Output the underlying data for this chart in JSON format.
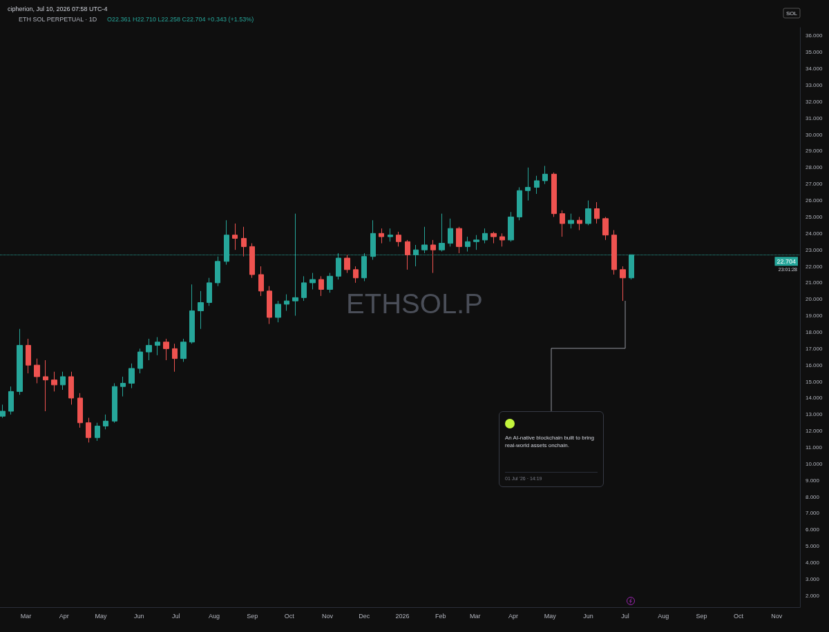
{
  "chart_data": {
    "type": "candlestick",
    "title": "ETH SOL PERPETUAL · 1D",
    "subtitle": "O22.361 H22.710 L22.258 C22.704 +0.343 (+1.53%)",
    "ylabel": "SOL",
    "annotations": [
      "cipherion, Jul 10, 2026 07:58 UTC-4",
      "ETHSOL.P",
      "An AI-native blockchain built to bring real-world assets onchain.",
      "01 Jul '26 · 14:19",
      "23:01:28"
    ],
    "x": [
      "2025-02-10",
      "2025-02-17",
      "2025-02-24",
      "2025-03-03",
      "2025-03-10",
      "2025-03-17",
      "2025-03-24",
      "2025-03-31",
      "2025-04-07",
      "2025-04-14",
      "2025-04-21",
      "2025-04-28",
      "2025-05-05",
      "2025-05-12",
      "2025-05-19",
      "2025-05-26",
      "2025-06-02",
      "2025-06-09",
      "2025-06-16",
      "2025-06-23",
      "2025-06-30",
      "2025-07-07",
      "2025-07-14",
      "2025-07-21",
      "2025-07-28",
      "2025-08-04",
      "2025-08-11",
      "2025-08-18",
      "2025-08-25",
      "2025-09-01",
      "2025-09-08",
      "2025-09-15",
      "2025-09-22",
      "2025-09-29",
      "2025-10-06",
      "2025-10-13",
      "2025-10-20",
      "2025-10-27",
      "2025-11-03",
      "2025-11-10",
      "2025-11-17",
      "2025-11-24",
      "2025-12-01",
      "2025-12-08",
      "2025-12-15",
      "2025-12-22",
      "2025-12-29",
      "2026-01-05",
      "2026-01-12",
      "2026-01-19",
      "2026-01-26",
      "2026-02-02",
      "2026-02-09",
      "2026-02-16",
      "2026-02-23",
      "2026-03-02",
      "2026-03-09",
      "2026-03-16",
      "2026-03-23",
      "2026-03-30",
      "2026-04-06",
      "2026-04-13",
      "2026-04-20",
      "2026-04-27",
      "2026-05-04",
      "2026-05-11",
      "2026-05-18",
      "2026-05-25",
      "2026-06-01",
      "2026-06-08",
      "2026-06-15",
      "2026-06-22",
      "2026-06-29",
      "2026-07-06"
    ],
    "ohlc": [
      [
        12.9,
        13.6,
        12.8,
        13.2
      ],
      [
        13.2,
        14.7,
        13.0,
        14.4
      ],
      [
        14.4,
        18.2,
        14.2,
        17.2
      ],
      [
        17.2,
        17.6,
        15.5,
        16.0
      ],
      [
        16.0,
        16.4,
        14.9,
        15.3
      ],
      [
        15.3,
        16.3,
        13.2,
        15.1
      ],
      [
        15.1,
        15.6,
        14.4,
        14.8
      ],
      [
        14.8,
        15.6,
        14.5,
        15.3
      ],
      [
        15.3,
        15.6,
        13.6,
        14.0
      ],
      [
        14.0,
        14.3,
        12.2,
        12.5
      ],
      [
        12.5,
        12.8,
        11.3,
        11.6
      ],
      [
        11.6,
        12.5,
        11.4,
        12.3
      ],
      [
        12.3,
        13.0,
        12.1,
        12.6
      ],
      [
        12.6,
        14.9,
        12.5,
        14.7
      ],
      [
        14.7,
        15.3,
        14.1,
        14.9
      ],
      [
        14.9,
        16.1,
        14.6,
        15.8
      ],
      [
        15.8,
        17.0,
        15.5,
        16.8
      ],
      [
        16.8,
        17.6,
        16.3,
        17.2
      ],
      [
        17.2,
        17.7,
        16.6,
        17.4
      ],
      [
        17.4,
        17.6,
        16.3,
        17.0
      ],
      [
        17.0,
        17.3,
        15.6,
        16.4
      ],
      [
        16.4,
        17.6,
        16.2,
        17.4
      ],
      [
        17.4,
        20.9,
        17.3,
        19.3
      ],
      [
        19.3,
        20.5,
        18.2,
        19.8
      ],
      [
        19.8,
        21.3,
        19.6,
        21.0
      ],
      [
        21.0,
        22.6,
        20.8,
        22.3
      ],
      [
        22.3,
        24.8,
        22.1,
        23.9
      ],
      [
        23.9,
        24.6,
        23.0,
        23.7
      ],
      [
        23.7,
        24.4,
        22.6,
        23.2
      ],
      [
        23.2,
        23.4,
        21.3,
        21.5
      ],
      [
        21.5,
        22.0,
        20.2,
        20.5
      ],
      [
        20.5,
        20.8,
        18.5,
        18.9
      ],
      [
        18.9,
        19.9,
        18.6,
        19.7
      ],
      [
        19.7,
        20.3,
        19.3,
        19.9
      ],
      [
        19.9,
        25.2,
        19.0,
        20.1
      ],
      [
        20.1,
        21.4,
        19.9,
        21.0
      ],
      [
        21.0,
        21.6,
        20.6,
        21.2
      ],
      [
        21.2,
        21.4,
        20.2,
        20.6
      ],
      [
        20.6,
        21.6,
        20.4,
        21.4
      ],
      [
        21.4,
        22.8,
        21.2,
        22.5
      ],
      [
        22.5,
        22.7,
        21.6,
        21.8
      ],
      [
        21.8,
        22.0,
        21.0,
        21.3
      ],
      [
        21.3,
        22.8,
        21.1,
        22.6
      ],
      [
        22.6,
        24.8,
        22.4,
        24.0
      ],
      [
        24.0,
        24.3,
        23.4,
        23.8
      ],
      [
        23.8,
        24.3,
        23.5,
        23.9
      ],
      [
        23.9,
        24.1,
        23.2,
        23.5
      ],
      [
        23.5,
        23.6,
        21.8,
        22.7
      ],
      [
        22.7,
        23.3,
        22.0,
        23.0
      ],
      [
        23.0,
        24.4,
        22.8,
        23.3
      ],
      [
        23.3,
        23.6,
        21.6,
        23.0
      ],
      [
        23.0,
        25.2,
        22.9,
        23.4
      ],
      [
        23.4,
        24.9,
        23.2,
        24.3
      ],
      [
        24.3,
        24.4,
        22.8,
        23.2
      ],
      [
        23.2,
        23.8,
        22.9,
        23.5
      ],
      [
        23.5,
        23.9,
        23.0,
        23.6
      ],
      [
        23.6,
        24.3,
        23.4,
        24.0
      ],
      [
        24.0,
        24.1,
        23.4,
        23.8
      ],
      [
        23.8,
        24.0,
        23.2,
        23.6
      ],
      [
        23.6,
        25.3,
        23.5,
        25.0
      ],
      [
        25.0,
        26.8,
        24.8,
        26.6
      ],
      [
        26.6,
        28.0,
        26.0,
        26.8
      ],
      [
        26.8,
        27.5,
        26.4,
        27.2
      ],
      [
        27.2,
        28.1,
        27.0,
        27.6
      ],
      [
        27.6,
        27.7,
        25.0,
        25.2
      ],
      [
        25.2,
        25.4,
        23.8,
        24.6
      ],
      [
        24.6,
        25.2,
        24.3,
        24.8
      ],
      [
        24.8,
        25.0,
        24.2,
        24.6
      ],
      [
        24.6,
        26.0,
        24.5,
        25.5
      ],
      [
        25.5,
        25.9,
        24.6,
        24.9
      ],
      [
        24.9,
        25.0,
        23.6,
        23.9
      ],
      [
        23.9,
        24.2,
        21.5,
        21.8
      ],
      [
        21.8,
        22.0,
        19.9,
        21.3
      ],
      [
        21.3,
        22.71,
        21.2,
        22.704
      ]
    ],
    "colors": [
      "#26a69a",
      "#26a69a",
      "#26a69a",
      "#ef5350",
      "#ef5350",
      "#ef5350",
      "#ef5350",
      "#26a69a",
      "#ef5350",
      "#ef5350",
      "#ef5350",
      "#26a69a",
      "#26a69a",
      "#26a69a",
      "#26a69a",
      "#26a69a",
      "#26a69a",
      "#26a69a",
      "#26a69a",
      "#ef5350",
      "#ef5350",
      "#26a69a",
      "#26a69a",
      "#26a69a",
      "#26a69a",
      "#26a69a",
      "#26a69a",
      "#ef5350",
      "#ef5350",
      "#ef5350",
      "#ef5350",
      "#ef5350",
      "#26a69a",
      "#26a69a",
      "#26a69a",
      "#26a69a",
      "#26a69a",
      "#ef5350",
      "#26a69a",
      "#26a69a",
      "#ef5350",
      "#ef5350",
      "#26a69a",
      "#26a69a",
      "#ef5350",
      "#26a69a",
      "#ef5350",
      "#ef5350",
      "#26a69a",
      "#26a69a",
      "#ef5350",
      "#26a69a",
      "#26a69a",
      "#ef5350",
      "#26a69a",
      "#26a69a",
      "#26a69a",
      "#ef5350",
      "#ef5350",
      "#26a69a",
      "#26a69a",
      "#26a69a",
      "#26a69a",
      "#26a69a",
      "#ef5350",
      "#ef5350",
      "#26a69a",
      "#ef5350",
      "#26a69a",
      "#ef5350",
      "#ef5350",
      "#ef5350",
      "#ef5350",
      "#26a69a"
    ],
    "xlim": [
      "2025-02-08",
      "2026-11-20"
    ],
    "xticks": [
      {
        "value": "2025-03-01",
        "label": "Mar"
      },
      {
        "value": "2025-04-01",
        "label": "Apr"
      },
      {
        "value": "2025-05-01",
        "label": "May"
      },
      {
        "value": "2025-06-01",
        "label": "Jun"
      },
      {
        "value": "2025-07-01",
        "label": "Jul"
      },
      {
        "value": "2025-08-01",
        "label": "Aug"
      },
      {
        "value": "2025-09-01",
        "label": "Sep"
      },
      {
        "value": "2025-10-01",
        "label": "Oct"
      },
      {
        "value": "2025-11-01",
        "label": "Nov"
      },
      {
        "value": "2025-12-01",
        "label": "Dec"
      },
      {
        "value": "2026-01-01",
        "label": "2026"
      },
      {
        "value": "2026-02-01",
        "label": "Feb"
      },
      {
        "value": "2026-03-01",
        "label": "Mar"
      },
      {
        "value": "2026-04-01",
        "label": "Apr"
      },
      {
        "value": "2026-05-01",
        "label": "May"
      },
      {
        "value": "2026-06-01",
        "label": "Jun"
      },
      {
        "value": "2026-07-01",
        "label": "Jul"
      },
      {
        "value": "2026-08-01",
        "label": "Aug"
      },
      {
        "value": "2026-09-01",
        "label": "Sep"
      },
      {
        "value": "2026-10-01",
        "label": "Oct"
      },
      {
        "value": "2026-11-01",
        "label": "Nov"
      }
    ],
    "ylim": [
      1.3,
      36.5
    ],
    "yticks": [
      {
        "value": 2,
        "label": "2.000"
      },
      {
        "value": 3,
        "label": "3.000"
      },
      {
        "value": 4,
        "label": "4.000"
      },
      {
        "value": 5,
        "label": "5.000"
      },
      {
        "value": 6,
        "label": "6.000"
      },
      {
        "value": 7,
        "label": "7.000"
      },
      {
        "value": 8,
        "label": "8.000"
      },
      {
        "value": 9,
        "label": "9.000"
      },
      {
        "value": 10,
        "label": "10.000"
      },
      {
        "value": 11,
        "label": "11.000"
      },
      {
        "value": 12,
        "label": "12.000"
      },
      {
        "value": 13,
        "label": "13.000"
      },
      {
        "value": 14,
        "label": "14.000"
      },
      {
        "value": 15,
        "label": "15.000"
      },
      {
        "value": 16,
        "label": "16.000"
      },
      {
        "value": 17,
        "label": "17.000"
      },
      {
        "value": 18,
        "label": "18.000"
      },
      {
        "value": 19,
        "label": "19.000"
      },
      {
        "value": 20,
        "label": "20.000"
      },
      {
        "value": 21,
        "label": "21.000"
      },
      {
        "value": 22,
        "label": "22.000"
      },
      {
        "value": 23,
        "label": "23.000"
      },
      {
        "value": 24,
        "label": "24.000"
      },
      {
        "value": 25,
        "label": "25.000"
      },
      {
        "value": 26,
        "label": "26.000"
      },
      {
        "value": 27,
        "label": "27.000"
      },
      {
        "value": 28,
        "label": "28.000"
      },
      {
        "value": 29,
        "label": "29.000"
      },
      {
        "value": 30,
        "label": "30.000"
      },
      {
        "value": 31,
        "label": "31.000"
      },
      {
        "value": 32,
        "label": "32.000"
      },
      {
        "value": 33,
        "label": "33.000"
      },
      {
        "value": 34,
        "label": "34.000"
      },
      {
        "value": 35,
        "label": "35.000"
      },
      {
        "value": 36,
        "label": "36.000"
      }
    ],
    "ref_lines": [
      {
        "axis": "y",
        "value": 22.704,
        "label": "22.704",
        "color": "#26a69a",
        "line_style": "dotted"
      }
    ]
  }
}
